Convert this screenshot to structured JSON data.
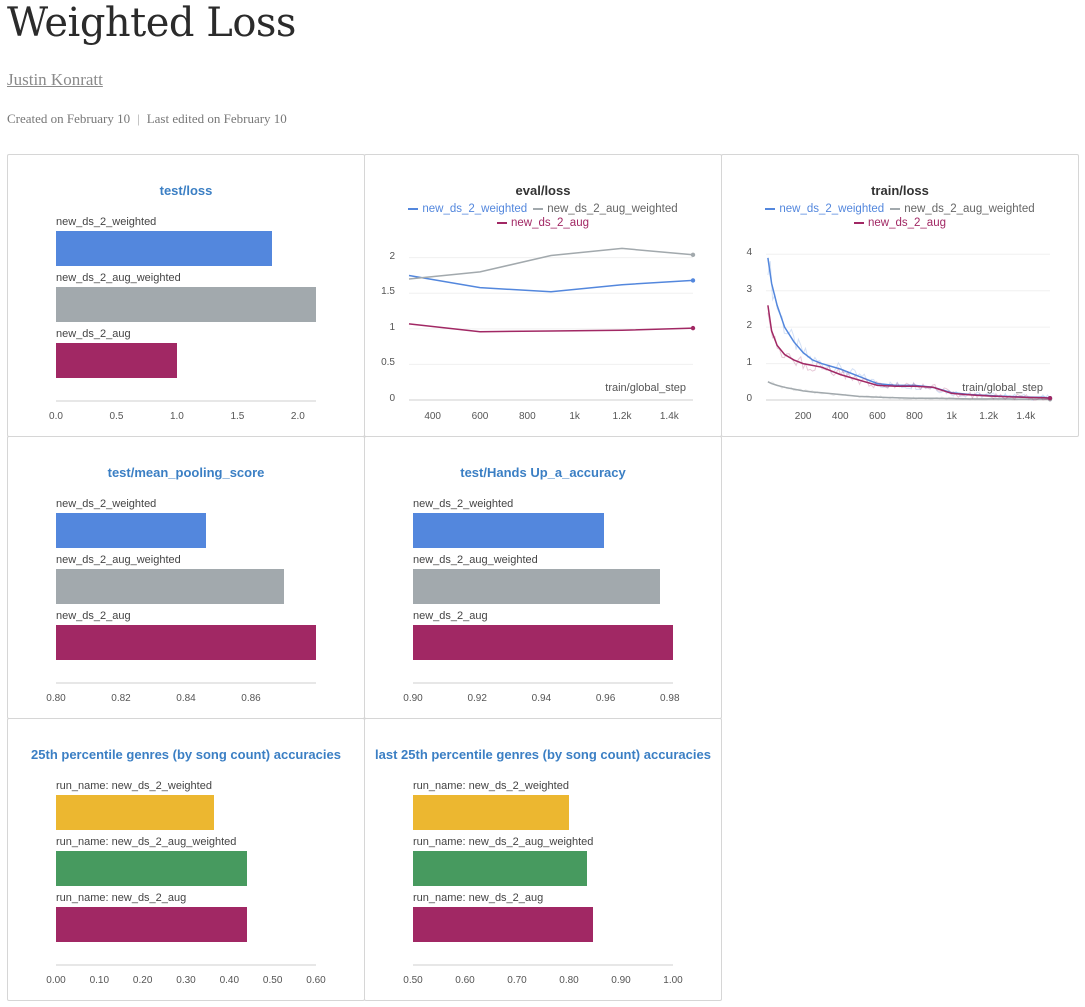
{
  "report": {
    "title": "Weighted Loss",
    "author": "Justin Konratt",
    "created": "Created on February 10",
    "edited": "Last edited on February 10"
  },
  "colors": {
    "blue": "#5387dd",
    "gray": "#a2a9ad",
    "crimson": "#a12864",
    "yellow": "#ecb730",
    "green": "#479a5f",
    "title_blue": "#3b7fc4"
  },
  "panels": {
    "test_loss": {
      "title": "test/loss",
      "labels": [
        "new_ds_2_weighted",
        "new_ds_2_aug_weighted",
        "new_ds_2_aug"
      ],
      "ticks": [
        "0.0",
        "0.5",
        "1.0",
        "1.5",
        "2.0"
      ]
    },
    "eval_loss": {
      "title": "eval/loss",
      "legend": [
        "new_ds_2_weighted",
        "new_ds_2_aug_weighted",
        "new_ds_2_aug"
      ],
      "xlabel": "train/global_step",
      "xticks": [
        "400",
        "600",
        "800",
        "1k",
        "1.2k",
        "1.4k"
      ],
      "yticks": [
        "2",
        "1.5",
        "1",
        "0.5",
        "0"
      ]
    },
    "train_loss": {
      "title": "train/loss",
      "legend": [
        "new_ds_2_weighted",
        "new_ds_2_aug_weighted",
        "new_ds_2_aug"
      ],
      "xlabel": "train/global_step",
      "xticks": [
        "200",
        "400",
        "600",
        "800",
        "1k",
        "1.2k",
        "1.4k"
      ],
      "yticks": [
        "4",
        "3",
        "2",
        "1",
        "0"
      ]
    },
    "mean_pooling": {
      "title": "test/mean_pooling_score",
      "labels": [
        "new_ds_2_weighted",
        "new_ds_2_aug_weighted",
        "new_ds_2_aug"
      ],
      "ticks": [
        "0.80",
        "0.82",
        "0.84",
        "0.86"
      ]
    },
    "hands_up": {
      "title": "test/Hands Up_a_accuracy",
      "labels": [
        "new_ds_2_weighted",
        "new_ds_2_aug_weighted",
        "new_ds_2_aug"
      ],
      "ticks": [
        "0.90",
        "0.92",
        "0.94",
        "0.96",
        "0.98"
      ]
    },
    "p25": {
      "title": "25th percentile genres (by song count) accuracies",
      "labels": [
        "run_name: new_ds_2_weighted",
        "run_name: new_ds_2_aug_weighted",
        "run_name: new_ds_2_aug"
      ],
      "ticks": [
        "0.00",
        "0.10",
        "0.20",
        "0.30",
        "0.40",
        "0.50",
        "0.60"
      ]
    },
    "last_p25": {
      "title": "last 25th percentile genres (by song count) accuracies",
      "labels": [
        "run_name: new_ds_2_weighted",
        "run_name: new_ds_2_aug_weighted",
        "run_name: new_ds_2_aug"
      ],
      "ticks": [
        "0.50",
        "0.60",
        "0.70",
        "0.80",
        "0.90",
        "1.00"
      ]
    }
  },
  "chart_data": [
    {
      "type": "bar",
      "orientation": "horizontal",
      "title": "test/loss",
      "categories": [
        "new_ds_2_weighted",
        "new_ds_2_aug_weighted",
        "new_ds_2_aug"
      ],
      "values": [
        1.79,
        2.15,
        1.0
      ],
      "xlim": [
        0,
        2.15
      ]
    },
    {
      "type": "line",
      "title": "eval/loss",
      "xlabel": "train/global_step",
      "xlim": [
        300,
        1500
      ],
      "ylim": [
        0,
        2.15
      ],
      "series": [
        {
          "name": "new_ds_2_weighted",
          "x": [
            300,
            600,
            900,
            1200,
            1500
          ],
          "y": [
            1.75,
            1.58,
            1.52,
            1.62,
            1.68
          ]
        },
        {
          "name": "new_ds_2_aug_weighted",
          "x": [
            300,
            600,
            900,
            1200,
            1500
          ],
          "y": [
            1.7,
            1.8,
            2.03,
            2.13,
            2.04
          ]
        },
        {
          "name": "new_ds_2_aug",
          "x": [
            300,
            600,
            900,
            1200,
            1500
          ],
          "y": [
            1.07,
            0.96,
            0.97,
            0.98,
            1.01
          ]
        }
      ]
    },
    {
      "type": "line",
      "title": "train/loss",
      "xlabel": "train/global_step",
      "xlim": [
        0,
        1530
      ],
      "ylim": [
        0,
        4.2
      ],
      "series": [
        {
          "name": "new_ds_2_weighted",
          "x": [
            10,
            30,
            60,
            100,
            150,
            200,
            250,
            300,
            400,
            500,
            600,
            700,
            800,
            900,
            1000,
            1100,
            1200,
            1300,
            1400,
            1500,
            1530
          ],
          "y": [
            3.9,
            3.2,
            2.6,
            2.0,
            1.6,
            1.3,
            1.1,
            1.0,
            0.85,
            0.65,
            0.45,
            0.4,
            0.4,
            0.35,
            0.2,
            0.15,
            0.12,
            0.1,
            0.08,
            0.07,
            0.05
          ]
        },
        {
          "name": "new_ds_2_aug_weighted",
          "x": [
            10,
            30,
            60,
            100,
            150,
            200,
            250,
            300,
            400,
            500,
            600,
            700,
            800,
            900,
            1000,
            1100,
            1200,
            1300,
            1400,
            1500,
            1530
          ],
          "y": [
            0.5,
            0.45,
            0.4,
            0.35,
            0.3,
            0.25,
            0.22,
            0.2,
            0.15,
            0.1,
            0.08,
            0.06,
            0.05,
            0.05,
            0.04,
            0.03,
            0.03,
            0.03,
            0.02,
            0.02,
            0.02
          ]
        },
        {
          "name": "new_ds_2_aug",
          "x": [
            10,
            30,
            60,
            100,
            150,
            200,
            250,
            300,
            400,
            500,
            600,
            700,
            800,
            900,
            1000,
            1100,
            1200,
            1300,
            1400,
            1500,
            1530
          ],
          "y": [
            2.6,
            1.9,
            1.5,
            1.25,
            1.1,
            1.0,
            0.95,
            0.9,
            0.7,
            0.55,
            0.4,
            0.38,
            0.38,
            0.35,
            0.18,
            0.14,
            0.11,
            0.09,
            0.07,
            0.06,
            0.05
          ]
        }
      ]
    },
    {
      "type": "bar",
      "orientation": "horizontal",
      "title": "test/mean_pooling_score",
      "categories": [
        "new_ds_2_weighted",
        "new_ds_2_aug_weighted",
        "new_ds_2_aug"
      ],
      "values": [
        0.846,
        0.87,
        0.88
      ],
      "xlim": [
        0.8,
        0.88
      ]
    },
    {
      "type": "bar",
      "orientation": "horizontal",
      "title": "test/Hands Up_a_accuracy",
      "categories": [
        "new_ds_2_weighted",
        "new_ds_2_aug_weighted",
        "new_ds_2_aug"
      ],
      "values": [
        0.9595,
        0.977,
        0.981
      ],
      "xlim": [
        0.9,
        0.981
      ]
    },
    {
      "type": "bar",
      "orientation": "horizontal",
      "title": "25th percentile genres (by song count) accuracies",
      "categories": [
        "run_name: new_ds_2_weighted",
        "run_name: new_ds_2_aug_weighted",
        "run_name: new_ds_2_aug"
      ],
      "values": [
        0.365,
        0.44,
        0.44
      ],
      "xlim": [
        0,
        0.6
      ]
    },
    {
      "type": "bar",
      "orientation": "horizontal",
      "title": "last 25th percentile genres (by song count) accuracies",
      "categories": [
        "run_name: new_ds_2_weighted",
        "run_name: new_ds_2_aug_weighted",
        "run_name: new_ds_2_aug"
      ],
      "values": [
        0.8,
        0.835,
        0.847
      ],
      "xlim": [
        0.5,
        1.0
      ]
    }
  ]
}
